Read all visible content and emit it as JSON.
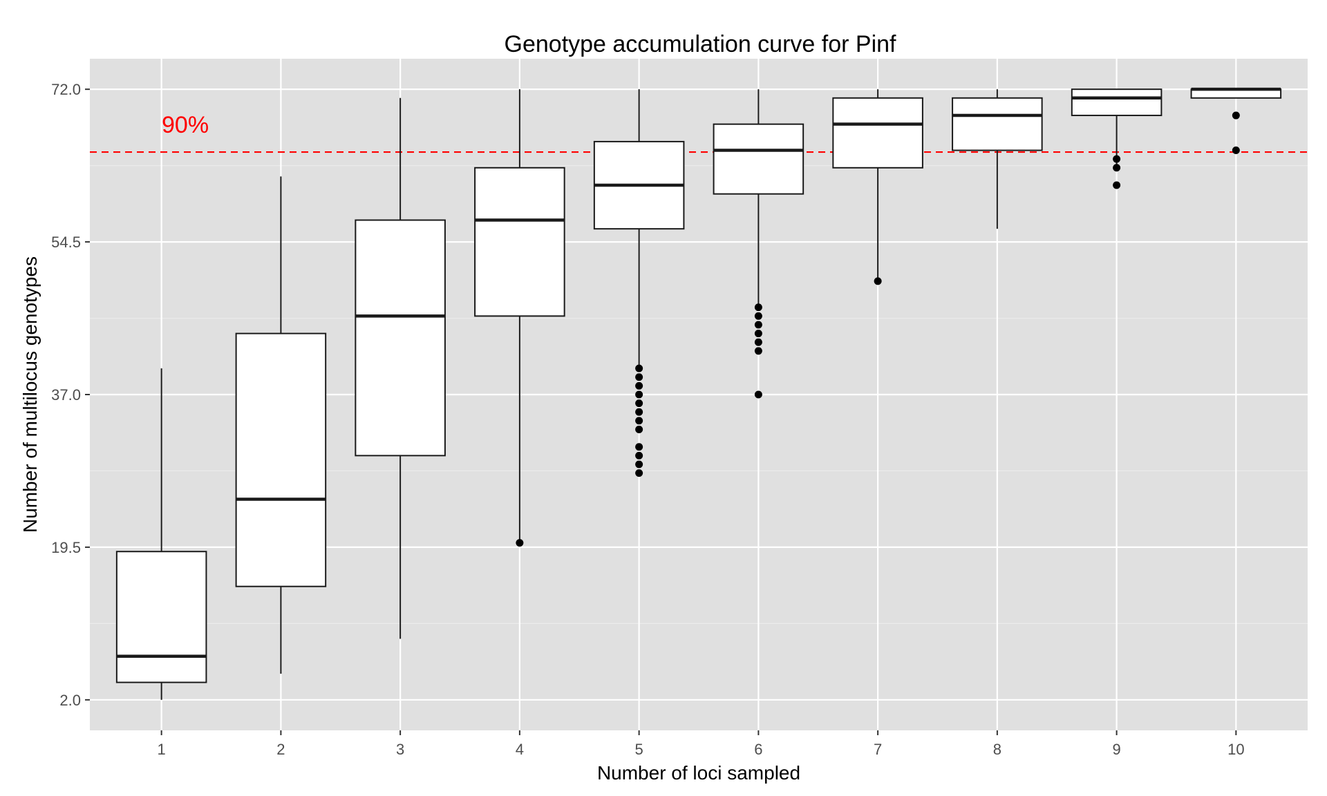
{
  "chart_data": {
    "type": "boxplot",
    "title": "Genotype accumulation curve for Pinf",
    "xlabel": "Number of loci sampled",
    "ylabel": "Number of multilocus genotypes",
    "categories": [
      "1",
      "2",
      "3",
      "4",
      "5",
      "6",
      "7",
      "8",
      "9",
      "10"
    ],
    "y_ticks": [
      2.0,
      19.5,
      37.0,
      54.5,
      72.0
    ],
    "y_tick_labels": [
      "2.0",
      "19.5",
      "37.0",
      "54.5",
      "72.0"
    ],
    "ylim": [
      -1.5,
      75.5
    ],
    "grid": true,
    "boxes": [
      {
        "category": "1",
        "whisker_low": 2,
        "q1": 4,
        "median": 7,
        "q3": 19,
        "whisker_high": 40,
        "outliers": []
      },
      {
        "category": "2",
        "whisker_low": 5,
        "q1": 15,
        "median": 25,
        "q3": 44,
        "whisker_high": 62,
        "outliers": []
      },
      {
        "category": "3",
        "whisker_low": 9,
        "q1": 30,
        "median": 46,
        "q3": 57,
        "whisker_high": 71,
        "outliers": []
      },
      {
        "category": "4",
        "whisker_low": 20,
        "q1": 46,
        "median": 57,
        "q3": 63,
        "whisker_high": 72,
        "outliers": [
          20
        ]
      },
      {
        "category": "5",
        "whisker_low": 40,
        "q1": 56,
        "median": 61,
        "q3": 66,
        "whisker_high": 72,
        "outliers": [
          28,
          29,
          30,
          31,
          33,
          34,
          35,
          36,
          37,
          38,
          39,
          40
        ]
      },
      {
        "category": "6",
        "whisker_low": 47,
        "q1": 60,
        "median": 65,
        "q3": 68,
        "whisker_high": 72,
        "outliers": [
          37,
          42,
          43,
          44,
          45,
          46,
          47
        ]
      },
      {
        "category": "7",
        "whisker_low": 50,
        "q1": 63,
        "median": 68,
        "q3": 71,
        "whisker_high": 72,
        "outliers": [
          50
        ]
      },
      {
        "category": "8",
        "whisker_low": 56,
        "q1": 65,
        "median": 69,
        "q3": 71,
        "whisker_high": 72,
        "outliers": []
      },
      {
        "category": "9",
        "whisker_low": 63,
        "q1": 69,
        "median": 71,
        "q3": 72,
        "whisker_high": 72,
        "outliers": [
          61,
          63,
          64
        ]
      },
      {
        "category": "10",
        "whisker_low": 71,
        "q1": 71,
        "median": 72,
        "q3": 72,
        "whisker_high": 72,
        "outliers": [
          65,
          69
        ]
      }
    ],
    "reference_line": {
      "y": 64.8,
      "label": "90%",
      "color": "#ff0000",
      "style": "dashed"
    },
    "colors": {
      "panel": "#e0e0e0",
      "grid_major": "#ffffff",
      "grid_minor": "#ebebeb",
      "box_fill": "#ffffff",
      "box_stroke": "#1a1a1a",
      "outlier": "#000000",
      "tick_text": "#4d4d4d"
    }
  }
}
